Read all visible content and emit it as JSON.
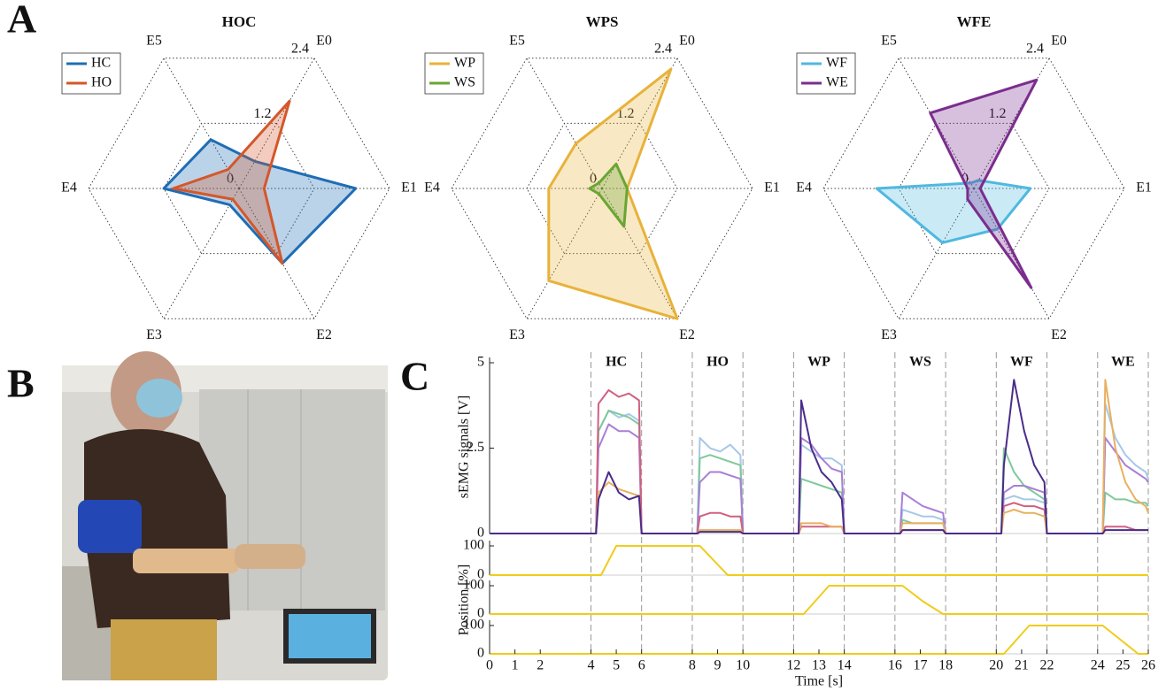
{
  "panel_labels": [
    "A",
    "B",
    "C"
  ],
  "chart_data": [
    {
      "type": "radar",
      "title": "HOC",
      "categories": [
        "E0",
        "E1",
        "E2",
        "E3",
        "E4",
        "E5"
      ],
      "ylim": [
        0,
        2.4
      ],
      "yticks": [
        0,
        1.2,
        2.4
      ],
      "series": [
        {
          "name": "HC",
          "color": "#1f6db5",
          "values": [
            0.5,
            1.86,
            1.38,
            0.3,
            1.2,
            0.9
          ]
        },
        {
          "name": "HO",
          "color": "#d4572a",
          "values": [
            1.61,
            0.4,
            1.38,
            0.2,
            1.05,
            0.35
          ]
        }
      ]
    },
    {
      "type": "radar",
      "title": "WPS",
      "categories": [
        "E0",
        "E1",
        "E2",
        "E3",
        "E4",
        "E5"
      ],
      "ylim": [
        0,
        2.4
      ],
      "yticks": [
        0,
        1.2,
        2.4
      ],
      "series": [
        {
          "name": "WP",
          "color": "#e8b23a",
          "values": [
            2.2,
            0.4,
            2.4,
            1.7,
            0.85,
            0.83
          ]
        },
        {
          "name": "WS",
          "color": "#6aa534",
          "values": [
            0.45,
            0.4,
            0.7,
            0.1,
            0.2,
            0.1
          ]
        }
      ]
    },
    {
      "type": "radar",
      "title": "WFE",
      "categories": [
        "E0",
        "E1",
        "E2",
        "E3",
        "E4",
        "E5"
      ],
      "ylim": [
        0,
        2.4
      ],
      "yticks": [
        0,
        1.2,
        2.4
      ],
      "series": [
        {
          "name": "WF",
          "color": "#4fb8e0",
          "values": [
            0.15,
            0.9,
            0.75,
            1.0,
            1.55,
            0.1
          ]
        },
        {
          "name": "WE",
          "color": "#7b2d8e",
          "values": [
            2.0,
            0.1,
            1.83,
            0.2,
            0.1,
            1.39
          ]
        }
      ]
    },
    {
      "type": "line",
      "ylabel": "sEMG signals [V]",
      "xlim": [
        0,
        26
      ],
      "ylim": [
        0,
        5
      ],
      "yticks": [
        0,
        2.5,
        5
      ],
      "phases": [
        {
          "label": "HC",
          "start": 4,
          "end": 6
        },
        {
          "label": "HO",
          "start": 8,
          "end": 10
        },
        {
          "label": "WP",
          "start": 12,
          "end": 14
        },
        {
          "label": "WS",
          "start": 16,
          "end": 18
        },
        {
          "label": "WF",
          "start": 20,
          "end": 22
        },
        {
          "label": "WE",
          "start": 24,
          "end": 26
        }
      ],
      "x": [
        0,
        4.2,
        4.3,
        4.7,
        5.1,
        5.5,
        5.9,
        6.0,
        8.2,
        8.3,
        8.7,
        9.1,
        9.5,
        9.9,
        10.0,
        12.2,
        12.3,
        12.7,
        13.1,
        13.5,
        13.9,
        14.0,
        16.2,
        16.3,
        16.7,
        17.1,
        17.5,
        17.9,
        18.0,
        20.2,
        20.3,
        20.7,
        21.1,
        21.5,
        21.9,
        22.0,
        24.2,
        24.3,
        24.7,
        25.1,
        25.5,
        25.9,
        26.0
      ],
      "series": [
        {
          "color": "#a6c8e8",
          "values": [
            0,
            0,
            3.0,
            3.6,
            3.4,
            3.5,
            3.3,
            0,
            0,
            2.8,
            2.5,
            2.4,
            2.6,
            2.3,
            0,
            0,
            2.6,
            2.4,
            2.2,
            2.2,
            2.0,
            0,
            0,
            0.7,
            0.6,
            0.5,
            0.5,
            0.4,
            0,
            0,
            1.0,
            1.1,
            1.0,
            1.0,
            0.9,
            0,
            0,
            3.8,
            2.8,
            2.3,
            2.0,
            1.8,
            1.6
          ]
        },
        {
          "color": "#7fc99a",
          "values": [
            0,
            0,
            3.0,
            3.6,
            3.5,
            3.4,
            3.2,
            0,
            0,
            2.2,
            2.3,
            2.2,
            2.1,
            2.0,
            0,
            0,
            1.6,
            1.5,
            1.4,
            1.3,
            1.2,
            0,
            0,
            0.4,
            0.3,
            0.3,
            0.3,
            0.3,
            0,
            0,
            2.5,
            1.8,
            1.4,
            1.2,
            1.0,
            0,
            0,
            1.2,
            1.0,
            1.0,
            0.9,
            0.9,
            0.8
          ]
        },
        {
          "color": "#a97fd6",
          "values": [
            0,
            0,
            2.5,
            3.2,
            3.0,
            3.0,
            2.8,
            0,
            0,
            1.5,
            1.8,
            1.8,
            1.7,
            1.6,
            0,
            0,
            2.8,
            2.6,
            2.2,
            1.9,
            1.8,
            0,
            0,
            1.2,
            1.0,
            0.8,
            0.7,
            0.6,
            0,
            0,
            1.2,
            1.4,
            1.4,
            1.3,
            1.2,
            0,
            0,
            2.8,
            2.4,
            2.0,
            1.8,
            1.6,
            1.5
          ]
        },
        {
          "color": "#d06080",
          "values": [
            0,
            0,
            3.8,
            4.2,
            4.0,
            4.1,
            3.9,
            0,
            0,
            0.5,
            0.6,
            0.6,
            0.5,
            0.5,
            0,
            0,
            0.2,
            0.2,
            0.2,
            0.2,
            0.2,
            0,
            0,
            0.1,
            0.1,
            0.1,
            0.1,
            0.1,
            0,
            0,
            0.8,
            0.9,
            0.8,
            0.8,
            0.7,
            0,
            0,
            0.2,
            0.2,
            0.2,
            0.1,
            0.1,
            0.1
          ]
        },
        {
          "color": "#e8b060",
          "values": [
            0,
            0,
            1.2,
            1.5,
            1.3,
            1.2,
            1.1,
            0,
            0,
            0.1,
            0.1,
            0.1,
            0.1,
            0.1,
            0,
            0,
            0.3,
            0.3,
            0.3,
            0.2,
            0.2,
            0,
            0,
            0.3,
            0.3,
            0.3,
            0.3,
            0.3,
            0,
            0,
            0.6,
            0.7,
            0.6,
            0.6,
            0.5,
            0,
            0,
            4.5,
            2.5,
            1.5,
            1.0,
            0.8,
            0.6
          ]
        },
        {
          "color": "#4b2c8a",
          "values": [
            0,
            0,
            1.0,
            1.8,
            1.2,
            1.0,
            1.1,
            0,
            0,
            0.05,
            0.05,
            0.05,
            0.05,
            0.05,
            0,
            0,
            3.9,
            2.5,
            1.8,
            1.5,
            1.0,
            0,
            0,
            0.1,
            0.1,
            0.1,
            0.1,
            0.1,
            0,
            0,
            2.0,
            4.5,
            3.0,
            2.0,
            1.5,
            0,
            0,
            0.1,
            0.1,
            0.1,
            0.1,
            0.1,
            0.1
          ]
        }
      ]
    },
    {
      "type": "line",
      "xlim": [
        0,
        26
      ],
      "ylim": [
        0,
        100
      ],
      "yticks": [
        0,
        100
      ],
      "x": [
        0,
        4.4,
        5.0,
        8.3,
        9.4,
        26
      ],
      "series": [
        {
          "color": "#f0cc1c",
          "values": [
            0,
            0,
            100,
            100,
            0,
            0
          ]
        }
      ]
    },
    {
      "type": "line",
      "ylabel": "Position [%]",
      "xlim": [
        0,
        26
      ],
      "ylim": [
        0,
        100
      ],
      "yticks": [
        0,
        100
      ],
      "x": [
        0,
        12.4,
        13.4,
        16.3,
        17.1,
        17.9,
        26
      ],
      "series": [
        {
          "color": "#f0cc1c",
          "values": [
            0,
            0,
            100,
            100,
            45,
            0,
            0
          ]
        }
      ]
    },
    {
      "type": "line",
      "xlabel": "Time [s]",
      "xlim": [
        0,
        26
      ],
      "ylim": [
        0,
        100
      ],
      "yticks": [
        0,
        100
      ],
      "xticks": [
        0,
        1,
        2,
        4,
        5,
        6,
        8,
        9,
        10,
        12,
        13,
        14,
        16,
        17,
        18,
        20,
        21,
        22,
        24,
        25,
        26
      ],
      "x": [
        0,
        20.3,
        21.3,
        24.2,
        25.6,
        26
      ],
      "series": [
        {
          "color": "#f0cc1c",
          "values": [
            0,
            0,
            100,
            100,
            0,
            0
          ]
        }
      ]
    }
  ]
}
